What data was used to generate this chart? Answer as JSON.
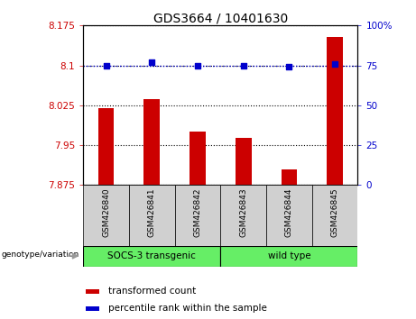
{
  "title": "GDS3664 / 10401630",
  "categories": [
    "GSM426840",
    "GSM426841",
    "GSM426842",
    "GSM426843",
    "GSM426844",
    "GSM426845"
  ],
  "bar_values": [
    8.02,
    8.037,
    7.975,
    7.963,
    7.905,
    8.153
  ],
  "dot_values": [
    75,
    77,
    75,
    75,
    74,
    76
  ],
  "ymin": 7.875,
  "ymax": 8.175,
  "y2min": 0,
  "y2max": 100,
  "yticks": [
    7.875,
    7.95,
    8.025,
    8.1,
    8.175
  ],
  "ytick_labels": [
    "7.875",
    "7.95",
    "8.025",
    "8.1",
    "8.175"
  ],
  "y2ticks": [
    0,
    25,
    50,
    75,
    100
  ],
  "y2tick_labels": [
    "0",
    "25",
    "50",
    "75",
    "100%"
  ],
  "bar_color": "#cc0000",
  "dot_color": "#0000cc",
  "group1_label": "SOCS-3 transgenic",
  "group2_label": "wild type",
  "group1_color": "#66ee66",
  "group2_color": "#66ee66",
  "genotype_label": "genotype/variation",
  "legend_bar_label": "transformed count",
  "legend_dot_label": "percentile rank within the sample",
  "tick_label_color_left": "#cc0000",
  "tick_label_color_right": "#0000cc",
  "xlabel_area_color": "#d0d0d0",
  "arrow_color": "#999999",
  "figwidth": 4.61,
  "figheight": 3.54,
  "dpi": 100
}
